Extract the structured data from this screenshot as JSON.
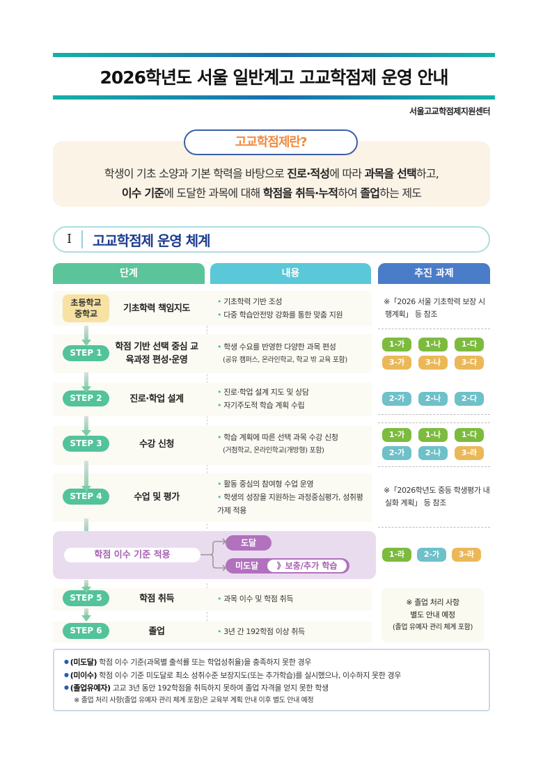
{
  "header": {
    "title": "2026학년도 서울 일반계고 고교학점제 운영 안내",
    "org": "서울고교학점제지원센터"
  },
  "definition": {
    "label": "고교학점제란?",
    "line1": [
      {
        "t": "학생이 기초 소양과 기본 학력을 바탕으로 ",
        "b": false
      },
      {
        "t": "진로·적성",
        "b": true
      },
      {
        "t": "에 따라 ",
        "b": false
      },
      {
        "t": "과목을 선택",
        "b": true
      },
      {
        "t": "하고,",
        "b": false
      }
    ],
    "line2": [
      {
        "t": "이수 기준",
        "b": true
      },
      {
        "t": "에 도달한 과목에 대해 ",
        "b": false
      },
      {
        "t": "학점을 취득·누적",
        "b": true
      },
      {
        "t": "하여 ",
        "b": false
      },
      {
        "t": "졸업",
        "b": true
      },
      {
        "t": "하는 제도",
        "b": false
      }
    ]
  },
  "section": {
    "num": "I",
    "title": "고교학점제 운영 체계"
  },
  "columns": {
    "stage": "단계",
    "content": "내용",
    "tasks": "추진 과제"
  },
  "colors": {
    "green": "#7dbb3f",
    "cyan": "#6ec0c9",
    "orange": "#ebb858",
    "step": "#52c39a",
    "purple": "#b171bd"
  },
  "rows": [
    {
      "step": "초등학교\n중학교",
      "title": "기초학력 책임지도",
      "content": [
        "기초학력 기반 조성",
        "다중 학습안전망 강화를 통한 맞춤 지원"
      ],
      "note": "※「2026 서울 기초학력 보장 시행계획」 등 참조"
    },
    {
      "step": "STEP 1",
      "title": "학점 기반 선택 중심 교육과정 편성·운영",
      "content": [
        "학생 수요를 반영한 다양한 과목 편성"
      ],
      "sub": "(공유 캠퍼스, 온라인학교, 학교 밖 교육 포함)",
      "badges": [
        [
          "1-가",
          "g"
        ],
        [
          "1-나",
          "g"
        ],
        [
          "1-다",
          "g"
        ],
        [
          "3-가",
          "o"
        ],
        [
          "3-나",
          "o"
        ],
        [
          "3-다",
          "o"
        ]
      ]
    },
    {
      "step": "STEP 2",
      "title": "진로·학업 설계",
      "content": [
        "진로·학업 설계 지도 및 상담",
        "자기주도적 학습 계획 수립"
      ],
      "badges": [
        [
          "2-가",
          "c"
        ],
        [
          "2-나",
          "c"
        ],
        [
          "2-다",
          "c"
        ]
      ]
    },
    {
      "step": "STEP 3",
      "title": "수강 신청",
      "content": [
        "학습 계획에 따른 선택 과목 수강 신청"
      ],
      "sub": "(거점학교, 온라인학교(개방형) 포함)",
      "badges": [
        [
          "1-가",
          "g"
        ],
        [
          "1-나",
          "g"
        ],
        [
          "1-다",
          "g"
        ],
        [
          "2-가",
          "c"
        ],
        [
          "2-나",
          "c"
        ],
        [
          "3-라",
          "o"
        ]
      ]
    },
    {
      "step": "STEP 4",
      "title": "수업 및 평가",
      "content": [
        "활동 중심의 참여형 수업 운영",
        "학생의 성장을 지원하는 과정중심평가, 성취평가제 적용"
      ],
      "note": "※「2026학년도 중등 학생평가 내실화 계획」 등 참조"
    },
    {
      "step": "STEP 5",
      "title": "학점 취득",
      "content": [
        "과목 이수 및 학점 취득"
      ]
    },
    {
      "step": "STEP 6",
      "title": "졸업",
      "content": [
        "3년 간 192학점 이상 취득"
      ]
    }
  ],
  "criteria": {
    "label": "학점 이수 기준 적용",
    "pass": "도달",
    "fail": "미도달",
    "remedial": "》보충/추가 학습",
    "badges": [
      [
        "1-라",
        "g"
      ],
      [
        "2-가",
        "c"
      ],
      [
        "3-라",
        "o"
      ]
    ]
  },
  "graduation_note": {
    "line1": "※ 졸업 처리 사항",
    "line2": "별도 안내 예정",
    "line3": "(졸업 유예자 관리 체계 포함)"
  },
  "footnotes": [
    {
      "term": "(미도달)",
      "text": " 학점 이수 기준(과목별 출석률 또는 학업성취율)을 충족하지 못한 경우"
    },
    {
      "term": "(미이수)",
      "text": " 학점 이수 기준 미도달로 최소 성취수준 보장지도(또는 추가학습)를 실시했으나, 이수하지 못한 경우"
    },
    {
      "term": "(졸업유예자)",
      "text": " 고교 3년 동안 192학점을 취득하지 못하여 졸업 자격을 얻지 못한 학생"
    }
  ],
  "footnote_extra": "※ 졸업 처리 사항(졸업 유예자 관리 체계 포함)은 교육부 계획 안내 이후 별도 안내 예정"
}
